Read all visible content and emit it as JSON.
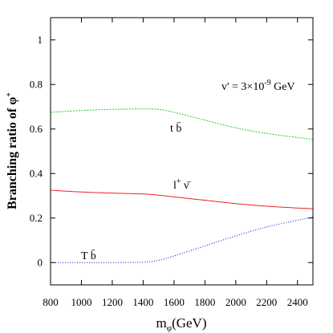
{
  "chart_data": {
    "type": "line",
    "xlabel_main": "m",
    "xlabel_sub": "φ",
    "xlabel_unit": "(GeV)",
    "ylabel_main": "Branching ratio of φ",
    "ylabel_sup": "+",
    "xlim": [
      800,
      2500
    ],
    "ylim": [
      -0.1,
      1.1
    ],
    "xticks": [
      800,
      1000,
      1200,
      1400,
      1600,
      1800,
      2000,
      2200,
      2400
    ],
    "yticks": [
      0,
      0.2,
      0.4,
      0.6,
      0.8,
      1
    ],
    "ytick_labels": [
      "0",
      "0.2",
      "0.4",
      "0.6",
      "0.8",
      "1"
    ],
    "grid": false,
    "annotation": {
      "prefix": "v' = 3×10",
      "exponent": "-9",
      "suffix": " GeV"
    },
    "series": [
      {
        "label_main": "t b̄",
        "color": "#22cc22",
        "dash": "2,1.5",
        "x": [
          800,
          1000,
          1200,
          1400,
          1500,
          1600,
          1800,
          2000,
          2200,
          2400,
          2500
        ],
        "y": [
          0.675,
          0.683,
          0.688,
          0.69,
          0.688,
          0.675,
          0.64,
          0.605,
          0.58,
          0.562,
          0.553
        ]
      },
      {
        "label_main": "l",
        "label_sup": "+",
        "label_tail": " ν̄",
        "color": "#ee2222",
        "dash": "",
        "x": [
          800,
          1000,
          1200,
          1400,
          1500,
          1600,
          1800,
          2000,
          2200,
          2400,
          2500
        ],
        "y": [
          0.325,
          0.317,
          0.312,
          0.308,
          0.303,
          0.295,
          0.28,
          0.265,
          0.253,
          0.245,
          0.242
        ]
      },
      {
        "label_main": "T b̄",
        "color": "#2233dd",
        "dash": "1.2,1.8",
        "x": [
          800,
          1000,
          1200,
          1400,
          1500,
          1600,
          1800,
          2000,
          2200,
          2400,
          2500
        ],
        "y": [
          0,
          0,
          0,
          0.002,
          0.01,
          0.03,
          0.075,
          0.12,
          0.16,
          0.19,
          0.205
        ]
      }
    ]
  }
}
